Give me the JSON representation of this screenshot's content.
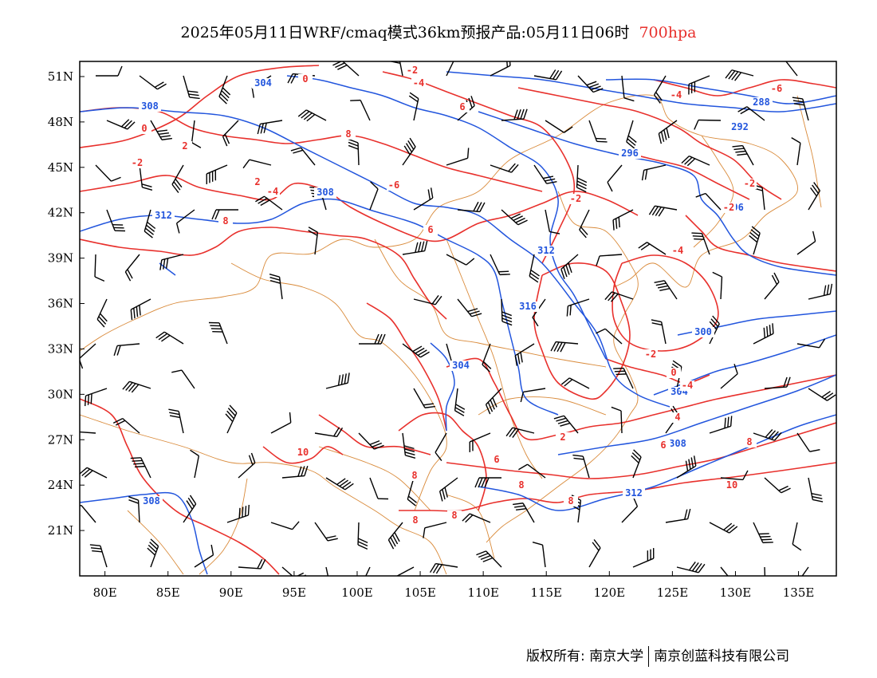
{
  "title": {
    "main": "2025年05月11日WRF/cmaq模式36km预报产品:05月11日06时",
    "level": "700hpa"
  },
  "axes": {
    "lat_labels": [
      "51N",
      "48N",
      "45N",
      "42N",
      "39N",
      "36N",
      "33N",
      "30N",
      "27N",
      "24N",
      "21N"
    ],
    "lon_labels": [
      "80E",
      "85E",
      "90E",
      "95E",
      "100E",
      "105E",
      "110E",
      "115E",
      "120E",
      "125E",
      "130E",
      "135E"
    ]
  },
  "map": {
    "lon_range": [
      78,
      138
    ],
    "lat_range": [
      18,
      52
    ],
    "colors": {
      "height": "#2255dd",
      "temperature": "#e8302c",
      "boundaries": "#d98a3a",
      "wind": "#000000"
    },
    "height_labels": [
      "304",
      "308",
      "308",
      "312",
      "312",
      "316",
      "304",
      "308",
      "296",
      "288",
      "292",
      "296",
      "300",
      "304",
      "308",
      "312"
    ],
    "temperature_labels": [
      "0",
      "-2",
      "-4",
      "6",
      "0",
      "2",
      "-2",
      "8",
      "2",
      "-4",
      "-6",
      "8",
      "6",
      "-2",
      "-2",
      "-2",
      "-4",
      "-4",
      "-2",
      "0",
      "-4",
      "2",
      "6",
      "8",
      "10",
      "8",
      "8",
      "8",
      "8",
      "8",
      "10",
      "6",
      "-6",
      "4"
    ]
  },
  "credit": {
    "left": "版权所有: 南京大学",
    "right": "南京创蓝科技有限公司"
  }
}
